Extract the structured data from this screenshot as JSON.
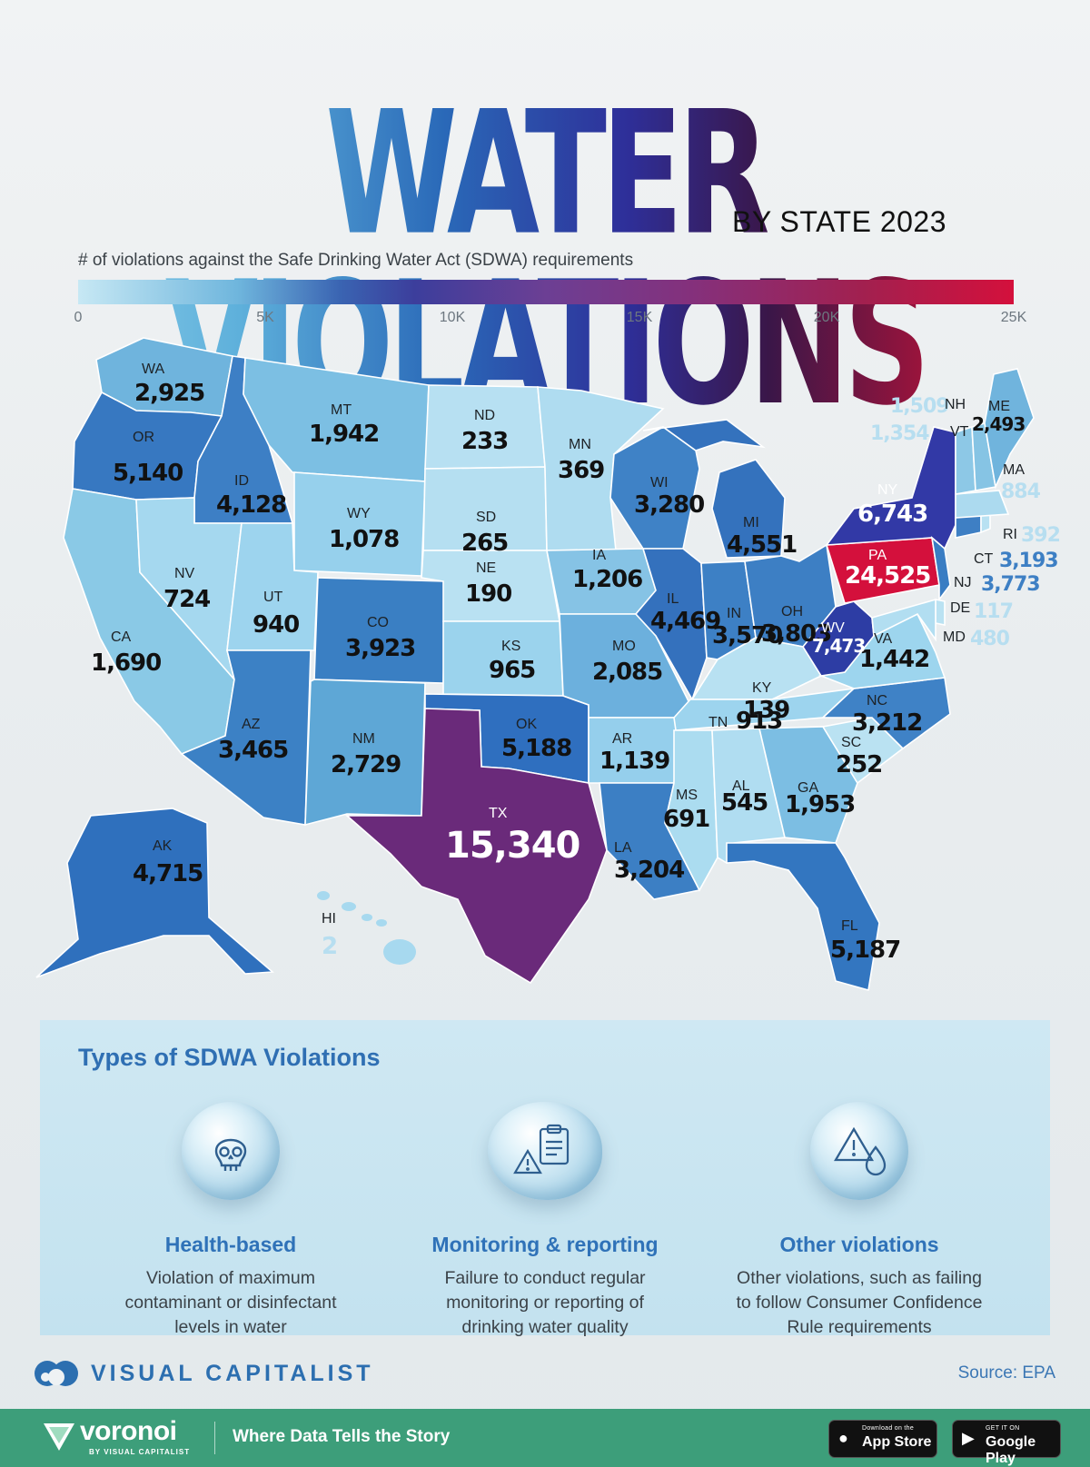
{
  "header": {
    "title": "WATER VIOLATIONS",
    "subtitle": "BY STATE 2023",
    "legend_caption": "# of violations against the Safe Drinking Water Act (SDWA) requirements",
    "legend_ticks": [
      "0",
      "5K",
      "10K",
      "15K",
      "20K",
      "25K"
    ]
  },
  "colors": {
    "scale": [
      "#c7e8f4",
      "#6fb6dd",
      "#3a64b2",
      "#3c3e9c",
      "#6c3f94",
      "#85307b",
      "#a2204f",
      "#d4103c"
    ],
    "pa": "#d4103c",
    "tx": "#6a2a7a"
  },
  "states": {
    "WA": {
      "abbr": "WA",
      "value": "2,925"
    },
    "OR": {
      "abbr": "OR",
      "value": "5,140"
    },
    "CA": {
      "abbr": "CA",
      "value": "1,690"
    },
    "ID": {
      "abbr": "ID",
      "value": "4,128"
    },
    "NV": {
      "abbr": "NV",
      "value": "724"
    },
    "MT": {
      "abbr": "MT",
      "value": "1,942"
    },
    "WY": {
      "abbr": "WY",
      "value": "1,078"
    },
    "UT": {
      "abbr": "UT",
      "value": "940"
    },
    "AZ": {
      "abbr": "AZ",
      "value": "3,465"
    },
    "CO": {
      "abbr": "CO",
      "value": "3,923"
    },
    "NM": {
      "abbr": "NM",
      "value": "2,729"
    },
    "ND": {
      "abbr": "ND",
      "value": "233"
    },
    "SD": {
      "abbr": "SD",
      "value": "265"
    },
    "NE": {
      "abbr": "NE",
      "value": "190"
    },
    "KS": {
      "abbr": "KS",
      "value": "965"
    },
    "OK": {
      "abbr": "OK",
      "value": "5,188"
    },
    "TX": {
      "abbr": "TX",
      "value": "15,340"
    },
    "MN": {
      "abbr": "MN",
      "value": "369"
    },
    "IA": {
      "abbr": "IA",
      "value": "1,206"
    },
    "MO": {
      "abbr": "MO",
      "value": "2,085"
    },
    "AR": {
      "abbr": "AR",
      "value": "1,139"
    },
    "LA": {
      "abbr": "LA",
      "value": "3,204"
    },
    "WI": {
      "abbr": "WI",
      "value": "3,280"
    },
    "IL": {
      "abbr": "IL",
      "value": "4,469"
    },
    "MI": {
      "abbr": "MI",
      "value": "4,551"
    },
    "IN": {
      "abbr": "IN",
      "value": "3,570"
    },
    "OH": {
      "abbr": "OH",
      "value": "3,803"
    },
    "KY": {
      "abbr": "KY",
      "value": "139"
    },
    "TN": {
      "abbr": "TN",
      "value": "913"
    },
    "MS": {
      "abbr": "MS",
      "value": "691"
    },
    "AL": {
      "abbr": "AL",
      "value": "545"
    },
    "GA": {
      "abbr": "GA",
      "value": "1,953"
    },
    "FL": {
      "abbr": "FL",
      "value": "5,187"
    },
    "SC": {
      "abbr": "SC",
      "value": "252"
    },
    "NC": {
      "abbr": "NC",
      "value": "3,212"
    },
    "VA": {
      "abbr": "VA",
      "value": "1,442"
    },
    "WV": {
      "abbr": "WV",
      "value": "7,473"
    },
    "PA": {
      "abbr": "PA",
      "value": "24,525"
    },
    "NY": {
      "abbr": "NY",
      "value": "6,743"
    },
    "ME": {
      "abbr": "ME",
      "value": "2,493"
    },
    "NH": {
      "abbr": "NH",
      "value": "1,509"
    },
    "VT": {
      "abbr": "VT",
      "value": "1,354"
    },
    "MA": {
      "abbr": "MA",
      "value": "884"
    },
    "RI": {
      "abbr": "RI",
      "value": "392"
    },
    "CT": {
      "abbr": "CT",
      "value": "3,193"
    },
    "NJ": {
      "abbr": "NJ",
      "value": "3,773"
    },
    "DE": {
      "abbr": "DE",
      "value": "117"
    },
    "MD": {
      "abbr": "MD",
      "value": "480"
    },
    "AK": {
      "abbr": "AK",
      "value": "4,715"
    },
    "HI": {
      "abbr": "HI",
      "value": "2"
    }
  },
  "types": {
    "title": "Types of SDWA Violations",
    "items": [
      {
        "heading": "Health-based",
        "desc_lines": [
          "Violation of maximum",
          "contaminant or disinfectant",
          "levels in water"
        ],
        "icon": "skull-icon"
      },
      {
        "heading": "Monitoring & reporting",
        "desc_lines": [
          "Failure to conduct regular",
          "monitoring or reporting of",
          "drinking water quality"
        ],
        "icon": "clipboard-warning-icon"
      },
      {
        "heading": "Other violations",
        "desc_lines": [
          "Other violations, such as failing",
          "to follow Consumer Confidence",
          "Rule requirements"
        ],
        "icon": "warning-droplet-icon"
      }
    ]
  },
  "branding": {
    "publisher": "VISUAL CAPITALIST",
    "source": "Source: EPA",
    "voronoi": "voronoi",
    "voronoi_by": "BY VISUAL CAPITALIST",
    "tagline": "Where Data Tells the Story",
    "app_store_small": "Download on the",
    "app_store_big": "App Store",
    "google_play_small": "GET IT ON",
    "google_play_big": "Google Play"
  }
}
